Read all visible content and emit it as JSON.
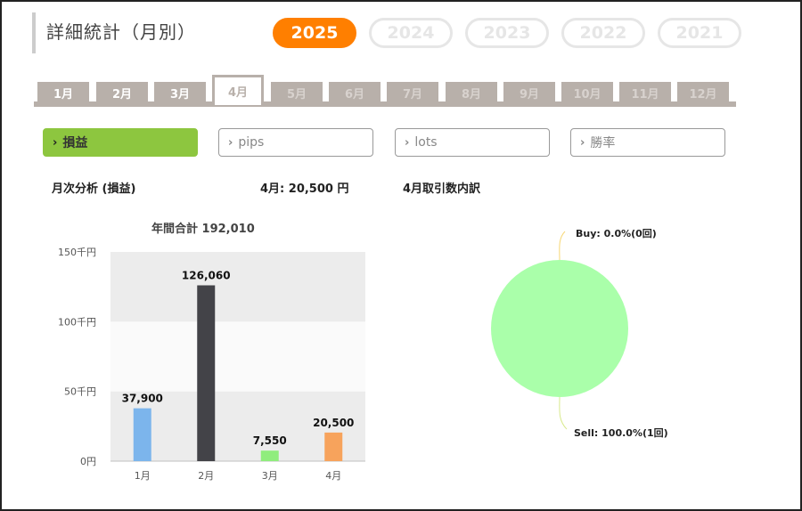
{
  "header": {
    "title": "詳細統計（月別）",
    "years": [
      {
        "label": "2025",
        "active": true
      },
      {
        "label": "2024",
        "active": false
      },
      {
        "label": "2023",
        "active": false
      },
      {
        "label": "2022",
        "active": false
      },
      {
        "label": "2021",
        "active": false
      }
    ]
  },
  "months": [
    {
      "label": "1月",
      "state": "past"
    },
    {
      "label": "2月",
      "state": "past"
    },
    {
      "label": "3月",
      "state": "past"
    },
    {
      "label": "4月",
      "state": "active"
    },
    {
      "label": "5月",
      "state": "future"
    },
    {
      "label": "6月",
      "state": "future"
    },
    {
      "label": "7月",
      "state": "future"
    },
    {
      "label": "8月",
      "state": "future"
    },
    {
      "label": "9月",
      "state": "future"
    },
    {
      "label": "10月",
      "state": "future"
    },
    {
      "label": "11月",
      "state": "future"
    },
    {
      "label": "12月",
      "state": "future"
    }
  ],
  "metrics": [
    {
      "label": "損益",
      "active": true
    },
    {
      "label": "pips",
      "active": false
    },
    {
      "label": "lots",
      "active": false
    },
    {
      "label": "勝率",
      "active": false
    }
  ],
  "colors": {
    "accent": "#ff7f00",
    "metric_active": "#8dc63f",
    "tab": "#b8b0aa"
  },
  "summary": {
    "monthly_analysis": "月次分析 (損益)",
    "month_value": "4月:  20,500 円",
    "breakdown_title": "4月取引数内訳"
  },
  "chart_data": [
    {
      "type": "bar",
      "title": "年間合計 192,010",
      "categories": [
        "1月",
        "2月",
        "3月",
        "4月"
      ],
      "values": [
        37900,
        126060,
        7550,
        20500
      ],
      "value_labels": [
        "37,900",
        "126,060",
        "7,550",
        "20,500"
      ],
      "bar_colors": [
        "#7cb5ec",
        "#434348",
        "#90ed7d",
        "#f7a35c"
      ],
      "yticks": [
        0,
        50000,
        100000,
        150000
      ],
      "ytick_labels": [
        "0円",
        "50千円",
        "100千円",
        "150千円"
      ],
      "ylim": [
        0,
        150000
      ]
    },
    {
      "type": "pie",
      "slices": [
        {
          "label": "Buy: 0.0%(0回)",
          "value": 0,
          "color": "#f7d774"
        },
        {
          "label": "Sell: 100.0%(1回)",
          "value": 100,
          "color": "#aaffaa"
        }
      ]
    }
  ]
}
